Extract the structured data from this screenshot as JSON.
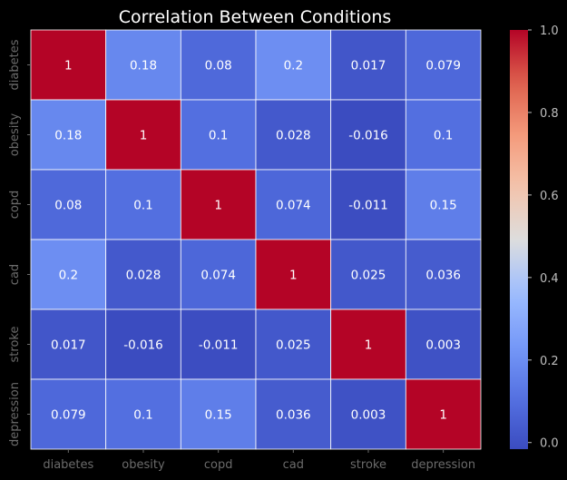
{
  "chart_data": {
    "type": "heatmap",
    "title": "Correlation Between Conditions",
    "x_labels": [
      "diabetes",
      "obesity",
      "copd",
      "cad",
      "stroke",
      "depression"
    ],
    "y_labels": [
      "diabetes",
      "obesity",
      "copd",
      "cad",
      "stroke",
      "depression"
    ],
    "values": [
      [
        1,
        0.18,
        0.08,
        0.2,
        0.017,
        0.079
      ],
      [
        0.18,
        1,
        0.1,
        0.028,
        -0.016,
        0.1
      ],
      [
        0.08,
        0.1,
        1,
        0.074,
        -0.011,
        0.15
      ],
      [
        0.2,
        0.028,
        0.074,
        1,
        0.025,
        0.036
      ],
      [
        0.017,
        -0.016,
        -0.011,
        0.025,
        1,
        0.003
      ],
      [
        0.079,
        0.1,
        0.15,
        0.036,
        0.003,
        1
      ]
    ],
    "colormap": "coolwarm",
    "vmin": -0.016,
    "vmax": 1,
    "colorbar_ticks": [
      "0.0",
      "0.2",
      "0.4",
      "0.6",
      "0.8",
      "1.0"
    ],
    "colorbar_tick_values": [
      0,
      0.2,
      0.4,
      0.6,
      0.8,
      1.0
    ],
    "annotated": true,
    "grid": "white lines between cells",
    "background": "#000000"
  }
}
